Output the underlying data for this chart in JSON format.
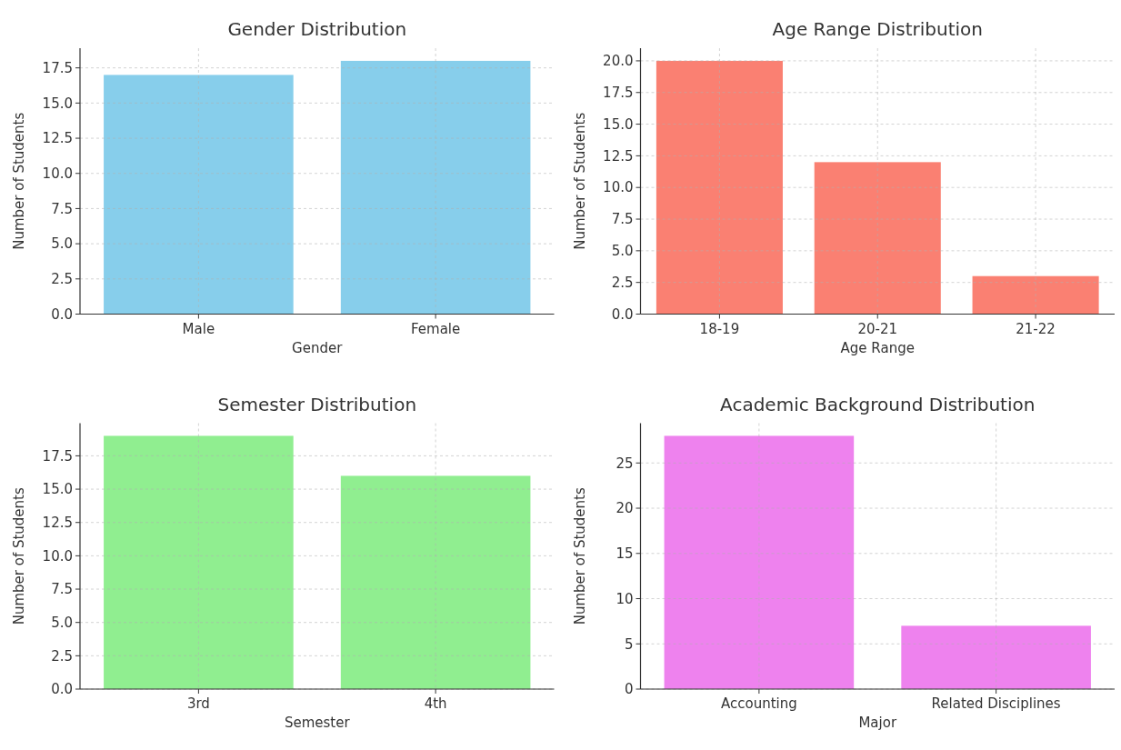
{
  "chart_data": [
    {
      "type": "bar",
      "title": "Gender Distribution",
      "xlabel": "Gender",
      "ylabel": "Number of Students",
      "categories": [
        "Male",
        "Female"
      ],
      "values": [
        17,
        18
      ],
      "color": "#87ceeb",
      "ylim": [
        0,
        18.9
      ],
      "yticks": [
        {
          "value": 0,
          "label": "0.0"
        },
        {
          "value": 2.5,
          "label": "2.5"
        },
        {
          "value": 5,
          "label": "5.0"
        },
        {
          "value": 7.5,
          "label": "7.5"
        },
        {
          "value": 10,
          "label": "10.0"
        },
        {
          "value": 12.5,
          "label": "12.5"
        },
        {
          "value": 15,
          "label": "15.0"
        },
        {
          "value": 17.5,
          "label": "17.5"
        }
      ],
      "grid": true
    },
    {
      "type": "bar",
      "title": "Age Range Distribution",
      "xlabel": "Age Range",
      "ylabel": "Number of Students",
      "categories": [
        "18-19",
        "20-21",
        "21-22"
      ],
      "values": [
        20,
        12,
        3
      ],
      "color": "#fa8072",
      "ylim": [
        0,
        21
      ],
      "yticks": [
        {
          "value": 0,
          "label": "0.0"
        },
        {
          "value": 2.5,
          "label": "2.5"
        },
        {
          "value": 5,
          "label": "5.0"
        },
        {
          "value": 7.5,
          "label": "7.5"
        },
        {
          "value": 10,
          "label": "10.0"
        },
        {
          "value": 12.5,
          "label": "12.5"
        },
        {
          "value": 15,
          "label": "15.0"
        },
        {
          "value": 17.5,
          "label": "17.5"
        },
        {
          "value": 20,
          "label": "20.0"
        }
      ],
      "grid": true
    },
    {
      "type": "bar",
      "title": "Semester Distribution",
      "xlabel": "Semester",
      "ylabel": "Number of Students",
      "categories": [
        "3rd",
        "4th"
      ],
      "values": [
        19,
        16
      ],
      "color": "#90ee90",
      "ylim": [
        0,
        19.95
      ],
      "yticks": [
        {
          "value": 0,
          "label": "0.0"
        },
        {
          "value": 2.5,
          "label": "2.5"
        },
        {
          "value": 5,
          "label": "5.0"
        },
        {
          "value": 7.5,
          "label": "7.5"
        },
        {
          "value": 10,
          "label": "10.0"
        },
        {
          "value": 12.5,
          "label": "12.5"
        },
        {
          "value": 15,
          "label": "15.0"
        },
        {
          "value": 17.5,
          "label": "17.5"
        }
      ],
      "grid": true
    },
    {
      "type": "bar",
      "title": "Academic Background Distribution",
      "xlabel": "Major",
      "ylabel": "Number of Students",
      "categories": [
        "Accounting",
        "Related Disciplines"
      ],
      "values": [
        28,
        7
      ],
      "color": "#ee82ee",
      "ylim": [
        0,
        29.4
      ],
      "yticks": [
        0,
        5,
        10,
        15,
        20,
        25
      ],
      "grid": true
    }
  ]
}
